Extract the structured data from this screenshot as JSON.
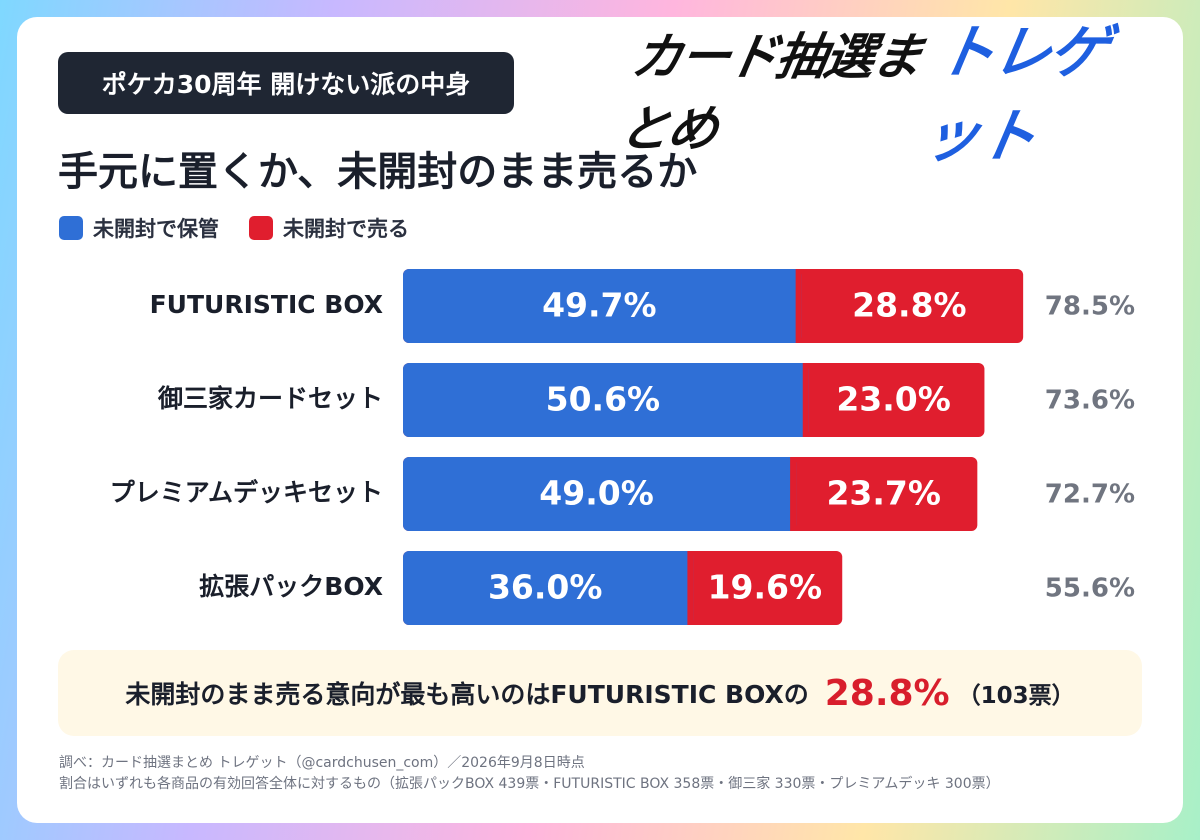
{
  "header": {
    "tag": "ポケカ30周年 開けない派の中身",
    "logo_left": "カード抽選まとめ",
    "logo_right": "トレゲット",
    "title": "手元に置くか、未開封のまま売るか"
  },
  "colors": {
    "keep": "#2f6fd6",
    "sell": "#e01e2e",
    "dark": "#1f2633",
    "logo_blue": "#1e5fe0"
  },
  "chart_data": {
    "type": "bar",
    "orientation": "horizontal",
    "stacked": true,
    "categories": [
      "FUTURISTIC BOX",
      "御三家カードセット",
      "プレミアムデッキセット",
      "拡張パックBOX"
    ],
    "series": [
      {
        "name": "未開封で保管",
        "values": [
          49.7,
          50.6,
          49.0,
          36.0
        ],
        "color": "#2f6fd6"
      },
      {
        "name": "未開封で売る",
        "values": [
          28.8,
          23.0,
          23.7,
          19.6
        ],
        "color": "#e01e2e"
      }
    ],
    "value_labels": {
      "keep": [
        "49.7%",
        "50.6%",
        "49.0%",
        "36.0%"
      ],
      "sell": [
        "28.8%",
        "23.0%",
        "23.7%",
        "19.6%"
      ]
    },
    "totals": [
      "78.5%",
      "73.6%",
      "72.7%",
      "55.6%"
    ],
    "xlim": [
      0,
      100
    ],
    "legend": "top-left",
    "grid": false
  },
  "summary": {
    "text": "未開封のまま売る意向が最も高いのはFUTURISTIC BOXの",
    "highlight": "28.8%",
    "votes": "（103票）"
  },
  "notes": {
    "line1": "調べ：カード抽選まとめ トレゲット（@cardchusen_com）／2026年9月8日時点",
    "line2": "割合はいずれも各商品の有効回答全体に対するもの（拡張パックBOX 439票・FUTURISTIC BOX 358票・御三家 330票・プレミアムデッキ 300票）"
  }
}
